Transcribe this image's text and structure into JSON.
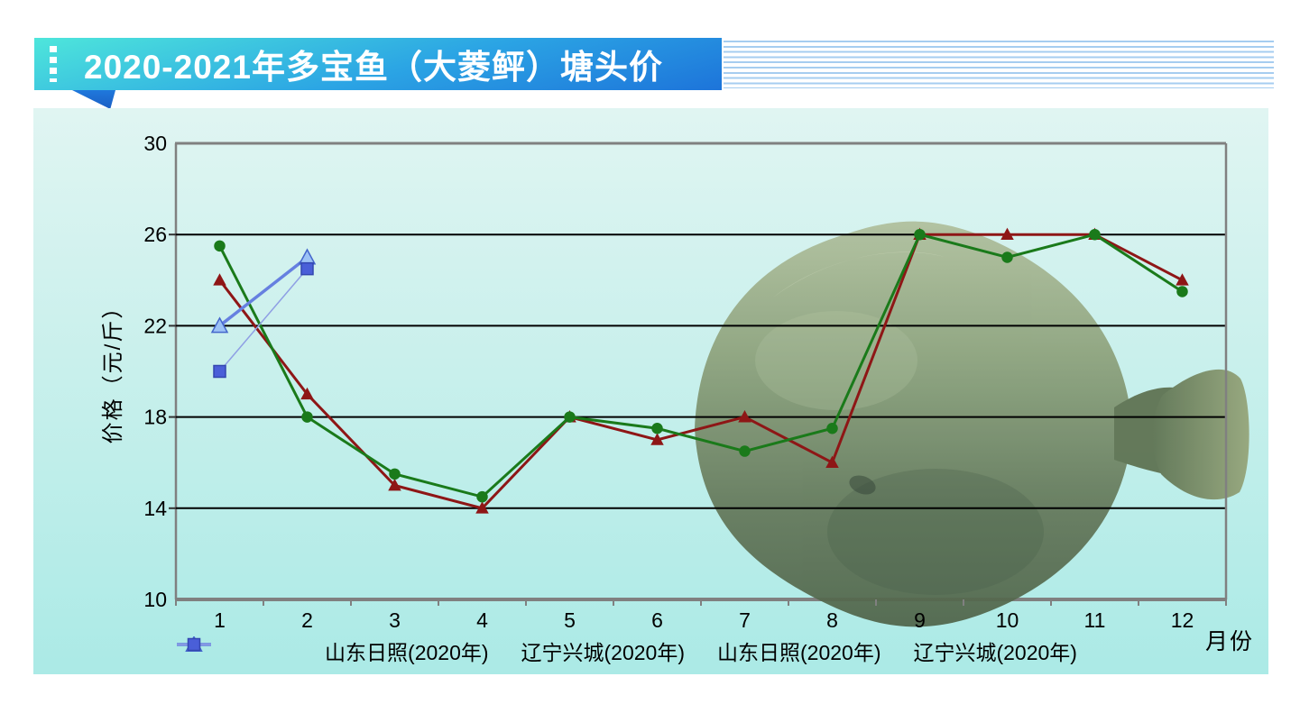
{
  "header": {
    "title": "2020-2021年多宝鱼（大菱鲆）塘头价",
    "banner_gradient": [
      "#4ee6db",
      "#1d74da"
    ],
    "pinstripe_color": "#a6cdf0"
  },
  "panel": {
    "background_gradient": [
      "#e0f5f2",
      "#abeae6"
    ]
  },
  "decor": {
    "fish_icon": "turbot-fish-photo",
    "fish_color": "#6e8259"
  },
  "chart_data": {
    "type": "line",
    "title": "",
    "categories": [
      "1",
      "2",
      "3",
      "4",
      "5",
      "6",
      "7",
      "8",
      "9",
      "10",
      "11",
      "12"
    ],
    "xlabel": "月份",
    "ylabel": "价格（元/斤）",
    "ylim": [
      10,
      30
    ],
    "yticks": [
      10,
      14,
      18,
      22,
      26,
      30
    ],
    "gridlines": [
      14,
      18,
      22,
      26
    ],
    "grid_color": "#000000",
    "axis_color": "#808080",
    "legend_position": "bottom",
    "series": [
      {
        "name": "山东日照(2020年)",
        "marker": "triangle",
        "color": "#8e1616",
        "marker_fill": "#8e1616",
        "marker_stroke": "#8e1616",
        "line_width": 3,
        "values": [
          24,
          19,
          15,
          14,
          18,
          17,
          18,
          16,
          26,
          26,
          26,
          24
        ]
      },
      {
        "name": "辽宁兴城(2020年)",
        "marker": "circle",
        "color": "#1a7a1a",
        "marker_fill": "#1a7a1a",
        "marker_stroke": "#1a7a1a",
        "line_width": 3,
        "values": [
          25.5,
          18,
          15.5,
          14.5,
          18,
          17.5,
          16.5,
          17.5,
          26,
          25,
          26,
          23.5
        ]
      },
      {
        "name": "山东日照(2020年)",
        "marker": "triangle",
        "color": "#6680e0",
        "marker_fill": "#9cc2f5",
        "marker_stroke": "#4466cc",
        "line_width": 3.5,
        "values": [
          22,
          25,
          null,
          null,
          null,
          null,
          null,
          null,
          null,
          null,
          null,
          null
        ]
      },
      {
        "name": "辽宁兴城(2020年)",
        "marker": "square",
        "color": "#8f9fe4",
        "marker_fill": "#4a5fd8",
        "marker_stroke": "#3347b0",
        "line_width": 1.5,
        "values": [
          20,
          24.5,
          null,
          null,
          null,
          null,
          null,
          null,
          null,
          null,
          null,
          null
        ]
      }
    ]
  }
}
